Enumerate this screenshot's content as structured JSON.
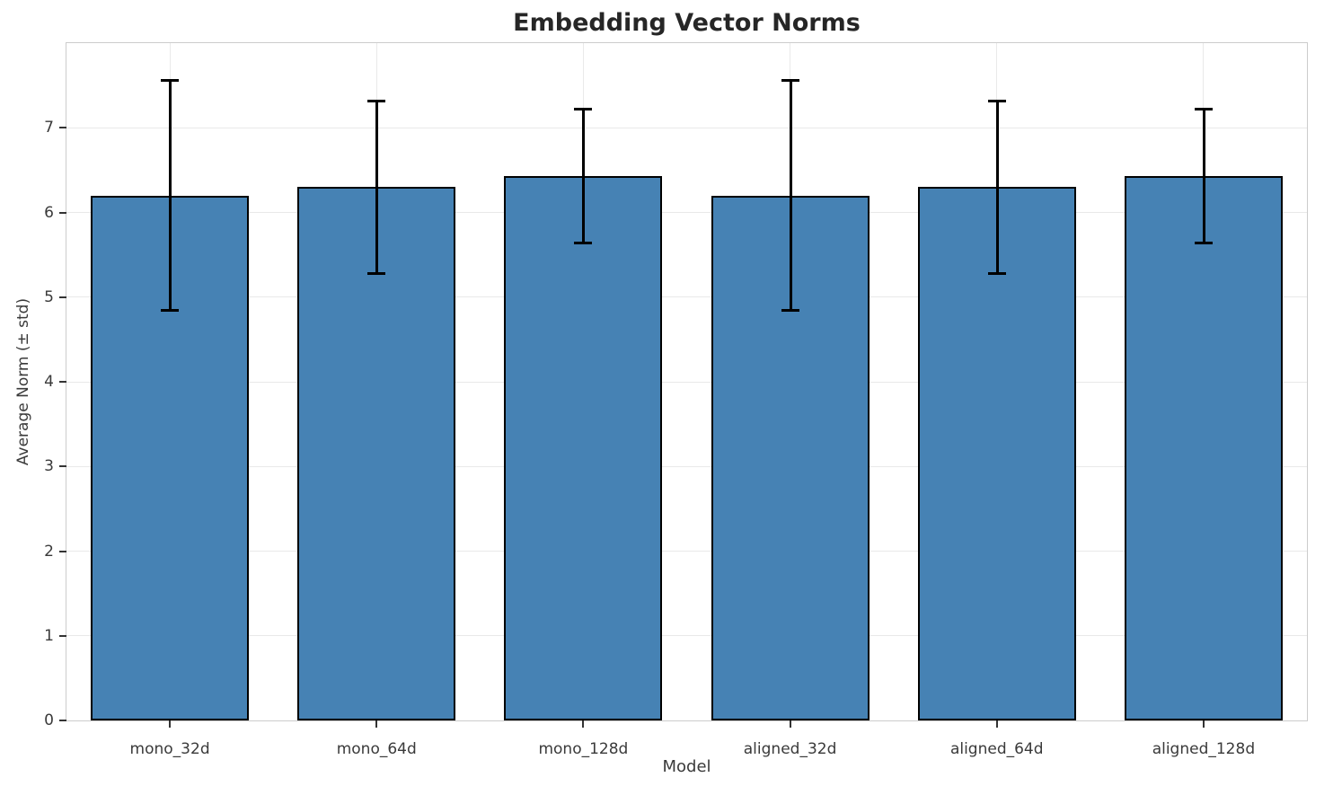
{
  "chart_data": {
    "type": "bar",
    "title": "Embedding Vector Norms",
    "xlabel": "Model",
    "ylabel": "Average Norm (± std)",
    "categories": [
      "mono_32d",
      "mono_64d",
      "mono_128d",
      "aligned_32d",
      "aligned_64d",
      "aligned_128d"
    ],
    "values": [
      6.2,
      6.3,
      6.43,
      6.2,
      6.3,
      6.43
    ],
    "errors": [
      1.36,
      1.02,
      0.79,
      1.36,
      1.02,
      0.79
    ],
    "ylim": [
      0,
      8.0
    ],
    "yticks": [
      0,
      1,
      2,
      3,
      4,
      5,
      6,
      7
    ],
    "grid": true,
    "legend": "none",
    "bar_color": "#4682b4",
    "bar_edge_color": "#000000",
    "error_color": "#000000",
    "grid_color": "#e9e9e9"
  }
}
